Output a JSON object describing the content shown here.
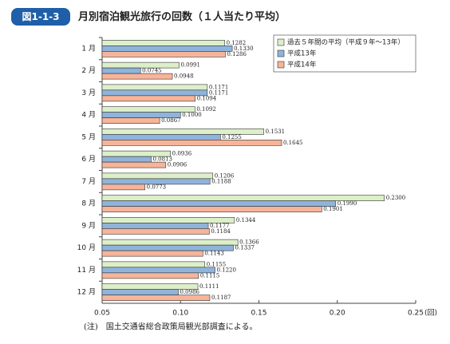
{
  "header": {
    "badge": "図1-1-3",
    "title": "月別宿泊観光旅行の回数（１人当たり平均）"
  },
  "chart_data": {
    "type": "hbar",
    "categories": [
      "1 月",
      "2 月",
      "3 月",
      "4 月",
      "5 月",
      "6 月",
      "7 月",
      "8 月",
      "9 月",
      "10 月",
      "11 月",
      "12 月"
    ],
    "series": [
      {
        "name": "過去５年間の平均（平成９年〜13年）",
        "color": "#dcefc9",
        "values": [
          0.1282,
          0.0991,
          0.1171,
          0.1092,
          0.1531,
          0.0936,
          0.1206,
          0.23,
          0.1344,
          0.1366,
          0.1155,
          0.1111
        ],
        "value_labels": [
          "0.1282",
          "0.0991",
          "0.1171",
          "0.1092",
          "0.1531",
          "0.0936",
          "0.1206",
          "0.2300",
          "0.1344",
          "0.1366",
          "0.1155",
          "0.1111"
        ]
      },
      {
        "name": "平成13年",
        "color": "#8fb4dc",
        "values": [
          0.133,
          0.0745,
          0.1171,
          0.1,
          0.1255,
          0.0813,
          0.1188,
          0.199,
          0.1177,
          0.1337,
          0.122,
          0.0986
        ],
        "value_labels": [
          "0.1330",
          "0.0745",
          "0.1171",
          "0.1000",
          "0.1255",
          "0.0813",
          "0.1188",
          "0.1990",
          "0.1177",
          "0.1337",
          "0.1220",
          "0.0986"
        ]
      },
      {
        "name": "平成14年",
        "color": "#f6b49a",
        "values": [
          0.1286,
          0.0948,
          0.1094,
          0.0867,
          0.1645,
          0.0906,
          0.0773,
          0.1901,
          0.1184,
          0.1143,
          0.1115,
          0.1187
        ],
        "value_labels": [
          "0.1286",
          "0.0948",
          "0.1094",
          "0.0867",
          "0.1645",
          "0.0906",
          "0.0773",
          "0.1901",
          "0.1184",
          "0.1143",
          "0.1115",
          "0.1187"
        ]
      }
    ],
    "xlim": [
      0.05,
      0.25
    ],
    "xticks": [
      0.05,
      {
        "value": 0.1,
        "label": "0.10"
      },
      0.15,
      {
        "value": 0.2,
        "label": "0.20"
      },
      0.25
    ],
    "x_unit": "(回)",
    "grid": false,
    "legend": "upper right"
  },
  "note": "(注)　国土交通省総合政策局観光部調査による。"
}
